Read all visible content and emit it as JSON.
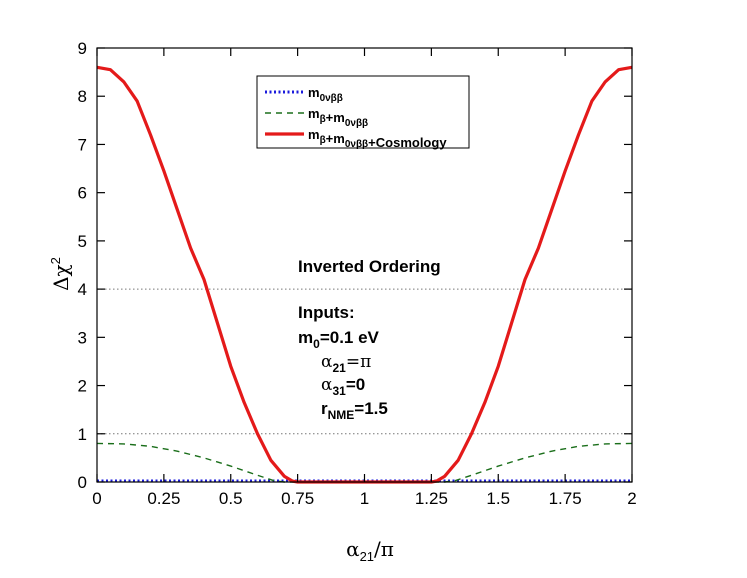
{
  "chart_data": {
    "type": "line",
    "title": "",
    "xlabel": {
      "main": "α",
      "sub": "21",
      "tail": "/π"
    },
    "ylabel": {
      "main": "Δχ",
      "sup": "2"
    },
    "xlim": [
      0,
      2
    ],
    "ylim": [
      0,
      9
    ],
    "xticks": [
      0,
      0.25,
      0.5,
      0.75,
      1,
      1.25,
      1.5,
      1.75,
      2
    ],
    "xtick_labels": [
      "0",
      "0.25",
      "0.5",
      "0.75",
      "1",
      "1.25",
      "1.5",
      "1.75",
      "2"
    ],
    "yticks": [
      0,
      1,
      2,
      3,
      4,
      5,
      6,
      7,
      8,
      9
    ],
    "ytick_labels": [
      "0",
      "1",
      "2",
      "3",
      "4",
      "5",
      "6",
      "7",
      "8",
      "9"
    ],
    "reference_lines": [
      1,
      4
    ],
    "legend_position": "top-center",
    "series": [
      {
        "legend": [
          [
            "m",
            "0νββ"
          ]
        ],
        "style": "dotted",
        "color": "#1a1adc",
        "x": [
          0,
          2
        ],
        "y": [
          0.02,
          0.02
        ]
      },
      {
        "legend": [
          [
            "m",
            "β"
          ],
          [
            "+m",
            "0νββ"
          ]
        ],
        "style": "dashed",
        "color": "#1a6e1a",
        "x": [
          0,
          0.1,
          0.2,
          0.3,
          0.4,
          0.5,
          0.6,
          0.66,
          0.7,
          1.3,
          1.34,
          1.4,
          1.5,
          1.6,
          1.7,
          1.8,
          1.9,
          2
        ],
        "y": [
          0.8,
          0.79,
          0.74,
          0.64,
          0.5,
          0.33,
          0.14,
          0.03,
          0,
          0,
          0.03,
          0.14,
          0.33,
          0.5,
          0.64,
          0.74,
          0.79,
          0.8
        ]
      },
      {
        "legend": [
          [
            "m",
            "β"
          ],
          [
            "+m",
            "0νββ"
          ],
          [
            "+Cosmology",
            ""
          ]
        ],
        "style": "solid",
        "color": "#e41a1a",
        "x": [
          0,
          0.05,
          0.1,
          0.15,
          0.2,
          0.25,
          0.3,
          0.35,
          0.4,
          0.45,
          0.5,
          0.55,
          0.6,
          0.65,
          0.7,
          0.73,
          0.75,
          1.25,
          1.27,
          1.3,
          1.35,
          1.4,
          1.45,
          1.5,
          1.55,
          1.6,
          1.65,
          1.7,
          1.75,
          1.8,
          1.85,
          1.9,
          1.95,
          2
        ],
        "y": [
          8.6,
          8.55,
          8.3,
          7.9,
          7.2,
          6.45,
          5.65,
          4.85,
          4.2,
          3.3,
          2.4,
          1.65,
          1.0,
          0.45,
          0.12,
          0.02,
          0,
          0,
          0.02,
          0.12,
          0.45,
          1.0,
          1.65,
          2.4,
          3.3,
          4.2,
          4.85,
          5.65,
          6.45,
          7.2,
          7.9,
          8.3,
          8.55,
          8.6
        ]
      }
    ],
    "annotations": {
      "ordering": "Inverted Ordering",
      "inputs_title": "Inputs:",
      "m0": {
        "main": "m",
        "sub": "0",
        "tail": "=0.1 eV"
      },
      "alpha21": {
        "main": "α",
        "sub": "21",
        "tail": "=π"
      },
      "alpha31": {
        "main": "α",
        "sub": "31",
        "tail": "=0"
      },
      "rnme": {
        "main": "r",
        "sub": "NME",
        "tail": "=1.5"
      }
    }
  }
}
